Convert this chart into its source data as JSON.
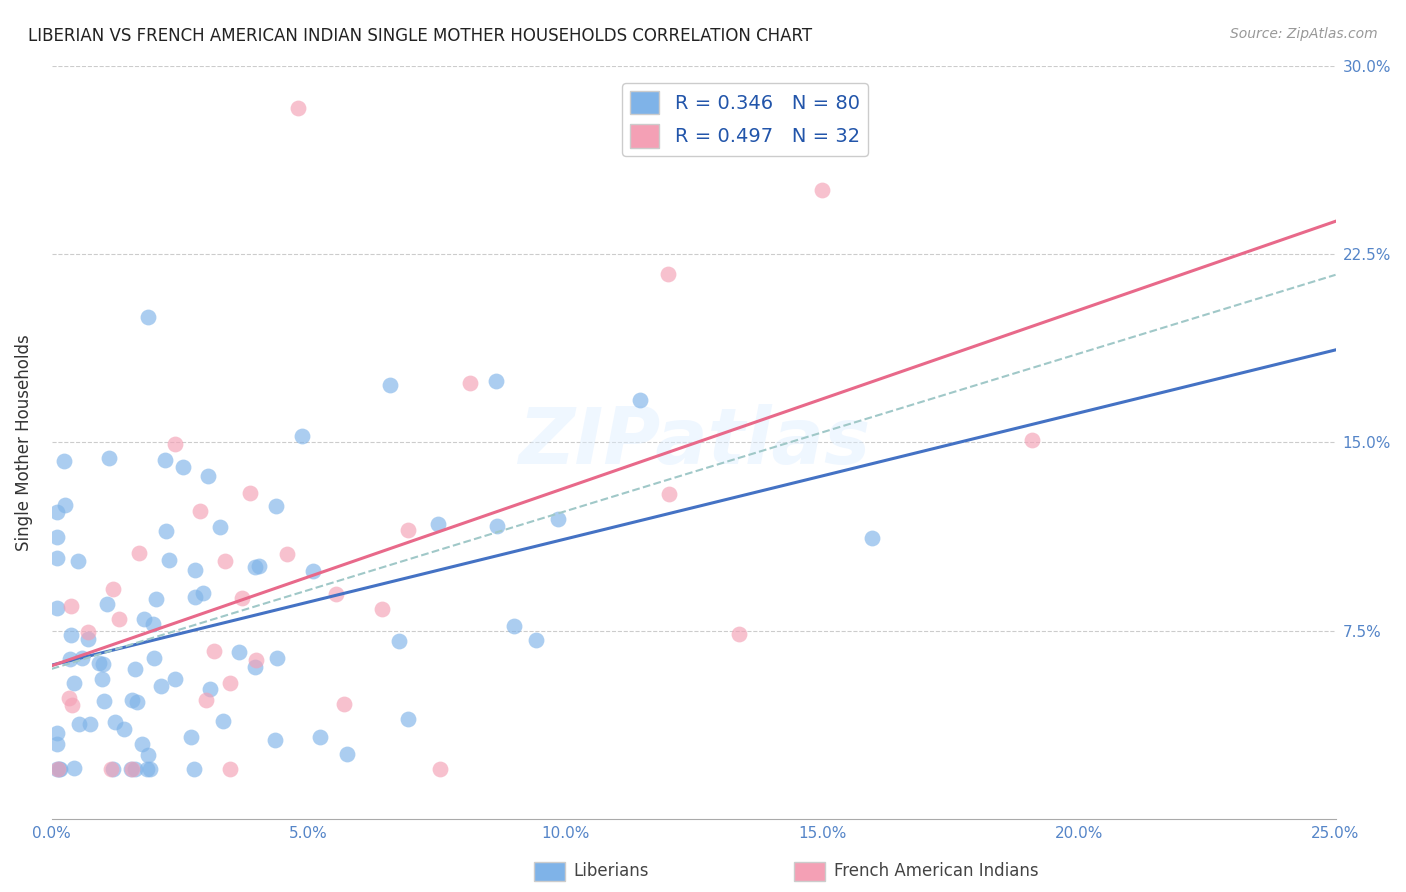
{
  "title": "LIBERIAN VS FRENCH AMERICAN INDIAN SINGLE MOTHER HOUSEHOLDS CORRELATION CHART",
  "source": "Source: ZipAtlas.com",
  "ylabel": "Single Mother Households",
  "legend_label1": "Liberians",
  "legend_label2": "French American Indians",
  "R1": 0.346,
  "N1": 80,
  "R2": 0.497,
  "N2": 32,
  "xlim": [
    0.0,
    0.25
  ],
  "ylim": [
    0.0,
    0.3
  ],
  "ytick_vals": [
    0.075,
    0.15,
    0.225,
    0.3
  ],
  "ytick_labels": [
    "7.5%",
    "15.0%",
    "22.5%",
    "30.0%"
  ],
  "xtick_vals": [
    0.0,
    0.05,
    0.1,
    0.15,
    0.2,
    0.25
  ],
  "xtick_labels": [
    "0.0%",
    "5.0%",
    "10.0%",
    "15.0%",
    "20.0%",
    "25.0%"
  ],
  "color_blue": "#7FB3E8",
  "color_pink": "#F4A0B5",
  "color_blue_line": "#4472C4",
  "color_pink_line": "#E8698A",
  "color_dashed": "#A0C8C8",
  "background": "#FFFFFF",
  "watermark": "ZIPatlas"
}
